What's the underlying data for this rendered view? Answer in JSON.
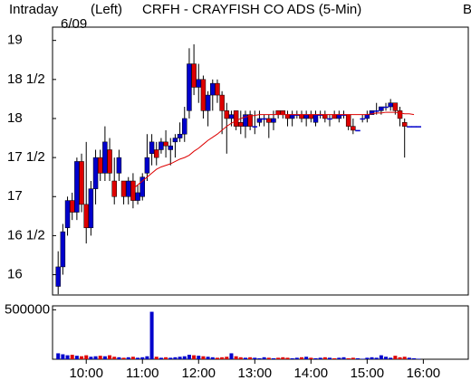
{
  "chart_data": {
    "type": "candlestick",
    "header": {
      "mode": "Intraday",
      "axis_side": "(Left)",
      "title": "CRFH - CRAYFISH CO ADS  (5-Min)",
      "date": "6/09",
      "corner": "B"
    },
    "x": [
      570,
      575,
      580,
      585,
      590,
      595,
      600,
      605,
      610,
      615,
      620,
      625,
      630,
      635,
      640,
      645,
      650,
      655,
      660,
      665,
      670,
      675,
      680,
      685,
      690,
      695,
      700,
      705,
      710,
      715,
      720,
      725,
      730,
      735,
      740,
      745,
      750,
      755,
      760,
      765,
      770,
      775,
      780,
      785,
      790,
      795,
      800,
      805,
      810,
      815,
      820,
      825,
      830,
      835,
      840,
      845,
      850,
      855,
      860,
      865,
      870,
      875,
      880,
      885,
      890,
      895,
      900,
      905,
      910,
      915,
      920,
      925,
      930,
      935,
      940,
      945,
      950,
      955
    ],
    "ohlc": [
      [
        15.85,
        16.3,
        15.75,
        16.1
      ],
      [
        16.1,
        16.65,
        16.0,
        16.55
      ],
      [
        16.6,
        17.0,
        16.5,
        16.95
      ],
      [
        16.95,
        17.05,
        16.7,
        16.8
      ],
      [
        16.8,
        17.5,
        16.7,
        17.45
      ],
      [
        17.45,
        17.55,
        16.8,
        16.9
      ],
      [
        16.9,
        17.7,
        16.4,
        16.6
      ],
      [
        16.6,
        17.2,
        16.5,
        17.1
      ],
      [
        17.1,
        17.6,
        16.9,
        17.5
      ],
      [
        17.5,
        17.6,
        17.2,
        17.3
      ],
      [
        17.3,
        17.9,
        17.2,
        17.7
      ],
      [
        17.6,
        17.75,
        17.2,
        17.3
      ],
      [
        17.2,
        17.5,
        16.9,
        17.0
      ],
      [
        17.3,
        17.6,
        17.2,
        17.5
      ],
      [
        17.2,
        17.2,
        16.9,
        17.0
      ],
      [
        17.0,
        17.25,
        16.9,
        17.2
      ],
      [
        17.2,
        17.3,
        16.85,
        16.95
      ],
      [
        16.95,
        17.15,
        16.9,
        17.05
      ],
      [
        17.0,
        17.3,
        16.95,
        17.25
      ],
      [
        17.3,
        17.8,
        17.2,
        17.5
      ],
      [
        17.55,
        17.8,
        17.4,
        17.7
      ],
      [
        17.6,
        17.7,
        17.4,
        17.5
      ],
      [
        17.6,
        17.75,
        17.55,
        17.7
      ],
      [
        17.7,
        17.85,
        17.5,
        17.65
      ],
      [
        17.6,
        17.75,
        17.4,
        17.65
      ],
      [
        17.7,
        17.8,
        17.5,
        17.75
      ],
      [
        17.75,
        17.95,
        17.7,
        17.8
      ],
      [
        17.8,
        18.15,
        17.7,
        18.0
      ],
      [
        18.1,
        18.9,
        18.0,
        18.7
      ],
      [
        18.7,
        18.95,
        18.3,
        18.4
      ],
      [
        18.4,
        18.7,
        18.2,
        18.5
      ],
      [
        18.5,
        18.55,
        18.0,
        18.1
      ],
      [
        18.1,
        18.35,
        17.9,
        18.3
      ],
      [
        18.3,
        18.5,
        18.1,
        18.45
      ],
      [
        18.45,
        18.5,
        18.2,
        18.3
      ],
      [
        18.3,
        18.35,
        17.8,
        18.1
      ],
      [
        18.1,
        18.2,
        17.55,
        18.0
      ],
      [
        18.0,
        18.1,
        17.9,
        18.05
      ],
      [
        18.1,
        18.1,
        17.85,
        17.9
      ],
      [
        17.95,
        18.1,
        17.8,
        17.9
      ],
      [
        17.9,
        18.1,
        17.75,
        18.05
      ],
      [
        18.05,
        18.1,
        17.85,
        17.9
      ],
      [
        17.9,
        18.1,
        17.8,
        17.9
      ],
      [
        17.95,
        18.1,
        17.9,
        18.0
      ],
      [
        18.0,
        18.05,
        17.9,
        18.0
      ],
      [
        18.0,
        18.05,
        17.75,
        17.95
      ],
      [
        17.95,
        18.1,
        17.85,
        18.0
      ],
      [
        18.1,
        18.1,
        18.0,
        18.05
      ],
      [
        18.1,
        18.1,
        18.0,
        18.05
      ],
      [
        18.05,
        18.1,
        17.9,
        18.0
      ],
      [
        18.0,
        18.1,
        17.9,
        18.05
      ],
      [
        18.05,
        18.1,
        18.0,
        18.05
      ],
      [
        18.05,
        18.1,
        17.95,
        18.0
      ],
      [
        18.0,
        18.1,
        17.9,
        18.05
      ],
      [
        18.05,
        18.1,
        17.95,
        18.0
      ],
      [
        17.95,
        18.1,
        17.9,
        18.05
      ],
      [
        18.05,
        18.1,
        18.0,
        18.05
      ],
      [
        18.05,
        18.1,
        17.95,
        18.0
      ],
      [
        18.0,
        18.05,
        17.9,
        18.0
      ],
      [
        18.05,
        18.1,
        18.0,
        18.0
      ],
      [
        18.0,
        18.1,
        17.95,
        18.05
      ],
      [
        18.05,
        18.1,
        18.0,
        18.05
      ],
      [
        18.05,
        18.05,
        17.85,
        17.9
      ],
      [
        17.9,
        18.0,
        17.8,
        17.85
      ],
      [
        17.85,
        17.85,
        17.85,
        17.85
      ],
      [
        18.0,
        18.05,
        17.95,
        18.0
      ],
      [
        18.0,
        18.1,
        17.95,
        18.05
      ],
      [
        18.05,
        18.1,
        18.05,
        18.1
      ],
      [
        18.1,
        18.2,
        18.05,
        18.1
      ],
      [
        18.1,
        18.15,
        18.05,
        18.15
      ],
      [
        18.15,
        18.2,
        18.1,
        18.15
      ],
      [
        18.15,
        18.25,
        18.1,
        18.2
      ],
      [
        18.2,
        18.2,
        18.05,
        18.1
      ],
      [
        18.1,
        18.15,
        17.9,
        18.0
      ],
      [
        17.95,
        18.0,
        17.5,
        17.9
      ],
      [
        17.9,
        17.9,
        17.9,
        17.9
      ],
      [
        17.9,
        17.9,
        17.9,
        17.9
      ],
      [
        17.9,
        17.9,
        17.9,
        17.9
      ]
    ],
    "moving_average": {
      "color": "#dd0000",
      "values": [
        null,
        null,
        null,
        null,
        null,
        null,
        null,
        null,
        null,
        null,
        null,
        null,
        null,
        null,
        null,
        null,
        17.1,
        17.15,
        17.2,
        17.25,
        17.3,
        17.35,
        17.38,
        17.4,
        17.42,
        17.45,
        17.48,
        17.5,
        17.53,
        17.58,
        17.62,
        17.67,
        17.72,
        17.76,
        17.8,
        17.85,
        17.9,
        17.94,
        17.97,
        18.0,
        18.02,
        18.03,
        18.04,
        18.05,
        18.05,
        18.05,
        18.05,
        18.05,
        18.05,
        18.05,
        18.05,
        18.05,
        18.05,
        18.05,
        18.05,
        18.05,
        18.05,
        18.05,
        18.05,
        18.05,
        18.05,
        18.05,
        18.05,
        18.05,
        18.05,
        18.05,
        18.05,
        18.06,
        18.07,
        18.07,
        18.08,
        18.08,
        18.08,
        18.07,
        18.06,
        18.06,
        18.05
      ]
    },
    "volume": [
      60000,
      50000,
      40000,
      45000,
      35000,
      30000,
      40000,
      25000,
      30000,
      35000,
      30000,
      40000,
      25000,
      20000,
      15000,
      20000,
      25000,
      15000,
      20000,
      30000,
      480000,
      25000,
      15000,
      20000,
      15000,
      20000,
      25000,
      30000,
      45000,
      40000,
      35000,
      30000,
      25000,
      20000,
      15000,
      20000,
      25000,
      60000,
      30000,
      20000,
      15000,
      20000,
      15000,
      10000,
      20000,
      15000,
      10000,
      15000,
      20000,
      15000,
      10000,
      15000,
      20000,
      25000,
      15000,
      10000,
      15000,
      20000,
      15000,
      10000,
      15000,
      20000,
      10000,
      15000,
      10000,
      5000,
      15000,
      20000,
      15000,
      40000,
      25000,
      15000,
      35000,
      20000,
      25000,
      15000,
      10000,
      5000
    ],
    "up_color": "#0000cc",
    "down_color": "#dd0000",
    "xlim": [
      564,
      1008
    ],
    "xticks": [
      {
        "value": 600,
        "label": "10:00"
      },
      {
        "value": 660,
        "label": "11:00"
      },
      {
        "value": 720,
        "label": "12:00"
      },
      {
        "value": 780,
        "label": "13:00"
      },
      {
        "value": 840,
        "label": "14:00"
      },
      {
        "value": 900,
        "label": "15:00"
      },
      {
        "value": 960,
        "label": "16:00"
      }
    ],
    "ylim": [
      15.74,
      19.17
    ],
    "yticks": [
      {
        "value": 16,
        "label": "16"
      },
      {
        "value": 16.5,
        "label": "16 1/2"
      },
      {
        "value": 17,
        "label": "17"
      },
      {
        "value": 17.5,
        "label": "17 1/2"
      },
      {
        "value": 18,
        "label": "18"
      },
      {
        "value": 18.5,
        "label": "18 1/2"
      },
      {
        "value": 19,
        "label": "19"
      }
    ],
    "volume_ylim": [
      0,
      540000
    ],
    "volume_yticks": [
      500000
    ]
  }
}
